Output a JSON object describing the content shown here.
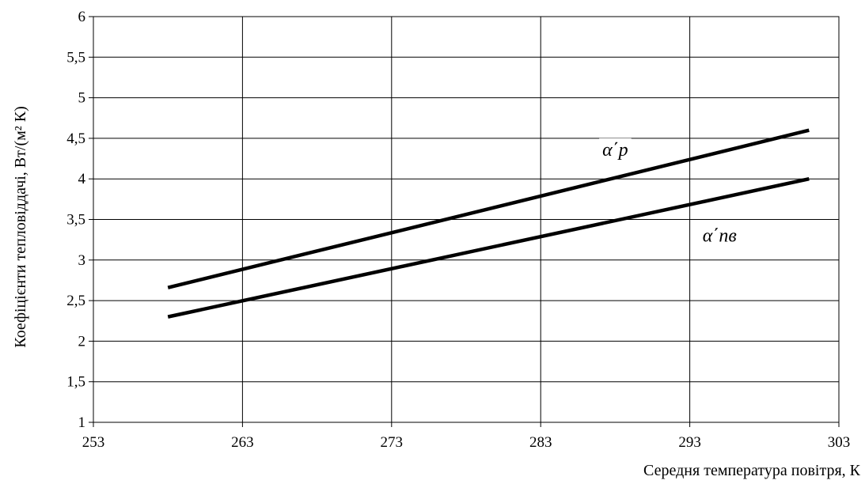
{
  "chart_data": {
    "type": "line",
    "xlabel": "Середня температура повітря, К",
    "ylabel": "Коефіцієнти тепловіддачі, Вт/(м² К)",
    "xlim": [
      253,
      303
    ],
    "ylim": [
      1,
      6
    ],
    "x_ticks": [
      "253",
      "263",
      "273",
      "283",
      "293",
      "303"
    ],
    "y_ticks": [
      "1",
      "1,5",
      "2",
      "2,5",
      "3",
      "3,5",
      "4",
      "4,5",
      "5",
      "5,5",
      "6"
    ],
    "grid": true,
    "series": [
      {
        "name": "α΄p",
        "x": [
          258,
          301
        ],
        "y": [
          2.66,
          4.6
        ],
        "label_at": [
          288,
          4.34
        ]
      },
      {
        "name": "α΄пв",
        "x": [
          258,
          301
        ],
        "y": [
          2.3,
          4.0
        ],
        "label_at": [
          295,
          3.28
        ]
      }
    ]
  }
}
